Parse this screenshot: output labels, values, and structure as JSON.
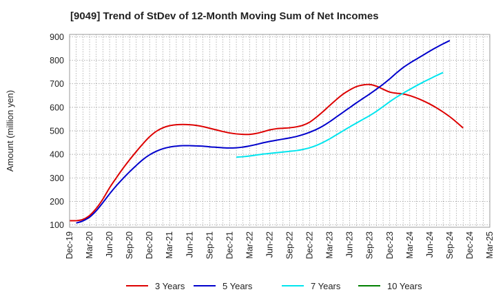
{
  "chart_data": {
    "type": "line",
    "title": "[9049]  Trend of StDev of 12-Month Moving Sum of Net Incomes",
    "ylabel": "Amount (million yen)",
    "xlabel": "",
    "ylim": [
      90,
      910
    ],
    "yticks": [
      100,
      200,
      300,
      400,
      500,
      600,
      700,
      800,
      900
    ],
    "x_tick_labels": [
      "Dec-19",
      "Mar-20",
      "Jun-20",
      "Sep-20",
      "Dec-20",
      "Mar-21",
      "Jun-21",
      "Sep-21",
      "Dec-21",
      "Mar-22",
      "Jun-22",
      "Sep-22",
      "Dec-22",
      "Mar-23",
      "Jun-23",
      "Sep-23",
      "Dec-23",
      "Mar-24",
      "Jun-24",
      "Sep-24",
      "Dec-24",
      "Mar-25"
    ],
    "grid": true,
    "legend_position": "bottom",
    "series": [
      {
        "name": "3 Years",
        "color": "#dd0000",
        "points": [
          [
            "Dec-19",
            118
          ],
          [
            "Jan-20",
            118
          ],
          [
            "Feb-20",
            123
          ],
          [
            "Mar-20",
            140
          ],
          [
            "Apr-20",
            170
          ],
          [
            "May-20",
            210
          ],
          [
            "Jun-20",
            258
          ],
          [
            "Jul-20",
            300
          ],
          [
            "Aug-20",
            340
          ],
          [
            "Sep-20",
            377
          ],
          [
            "Oct-20",
            412
          ],
          [
            "Nov-20",
            445
          ],
          [
            "Dec-20",
            475
          ],
          [
            "Jan-21",
            498
          ],
          [
            "Feb-21",
            513
          ],
          [
            "Mar-21",
            522
          ],
          [
            "Apr-21",
            526
          ],
          [
            "May-21",
            527
          ],
          [
            "Jun-21",
            526
          ],
          [
            "Jul-21",
            523
          ],
          [
            "Aug-21",
            518
          ],
          [
            "Sep-21",
            511
          ],
          [
            "Oct-21",
            504
          ],
          [
            "Nov-21",
            497
          ],
          [
            "Dec-21",
            491
          ],
          [
            "Jan-22",
            487
          ],
          [
            "Feb-22",
            485
          ],
          [
            "Mar-22",
            485
          ],
          [
            "Apr-22",
            489
          ],
          [
            "May-22",
            496
          ],
          [
            "Jun-22",
            504
          ],
          [
            "Jul-22",
            509
          ],
          [
            "Aug-22",
            511
          ],
          [
            "Sep-22",
            513
          ],
          [
            "Oct-22",
            517
          ],
          [
            "Nov-22",
            524
          ],
          [
            "Dec-22",
            537
          ],
          [
            "Jan-23",
            558
          ],
          [
            "Feb-23",
            582
          ],
          [
            "Mar-23",
            608
          ],
          [
            "Apr-23",
            633
          ],
          [
            "May-23",
            656
          ],
          [
            "Jun-23",
            674
          ],
          [
            "Jul-23",
            688
          ],
          [
            "Aug-23",
            695
          ],
          [
            "Sep-23",
            697
          ],
          [
            "Oct-23",
            690
          ],
          [
            "Nov-23",
            677
          ],
          [
            "Dec-23",
            665
          ],
          [
            "Jan-24",
            660
          ],
          [
            "Feb-24",
            657
          ],
          [
            "Mar-24",
            650
          ],
          [
            "Apr-24",
            640
          ],
          [
            "May-24",
            628
          ],
          [
            "Jun-24",
            614
          ],
          [
            "Jul-24",
            598
          ],
          [
            "Aug-24",
            580
          ],
          [
            "Sep-24",
            560
          ],
          [
            "Oct-24",
            537
          ],
          [
            "Nov-24",
            512
          ]
        ]
      },
      {
        "name": "5 Years",
        "color": "#0000cc",
        "points": [
          [
            "Jan-20",
            108
          ],
          [
            "Feb-20",
            117
          ],
          [
            "Mar-20",
            133
          ],
          [
            "Apr-20",
            160
          ],
          [
            "May-20",
            195
          ],
          [
            "Jun-20",
            232
          ],
          [
            "Jul-20",
            266
          ],
          [
            "Aug-20",
            297
          ],
          [
            "Sep-20",
            326
          ],
          [
            "Oct-20",
            353
          ],
          [
            "Nov-20",
            378
          ],
          [
            "Dec-20",
            398
          ],
          [
            "Jan-21",
            413
          ],
          [
            "Feb-21",
            424
          ],
          [
            "Mar-21",
            431
          ],
          [
            "Apr-21",
            435
          ],
          [
            "May-21",
            437
          ],
          [
            "Jun-21",
            437
          ],
          [
            "Jul-21",
            436
          ],
          [
            "Aug-21",
            435
          ],
          [
            "Sep-21",
            432
          ],
          [
            "Oct-21",
            430
          ],
          [
            "Nov-21",
            428
          ],
          [
            "Dec-21",
            427
          ],
          [
            "Jan-22",
            428
          ],
          [
            "Feb-22",
            431
          ],
          [
            "Mar-22",
            436
          ],
          [
            "Apr-22",
            442
          ],
          [
            "May-22",
            449
          ],
          [
            "Jun-22",
            455
          ],
          [
            "Jul-22",
            460
          ],
          [
            "Aug-22",
            465
          ],
          [
            "Sep-22",
            470
          ],
          [
            "Oct-22",
            476
          ],
          [
            "Nov-22",
            484
          ],
          [
            "Dec-22",
            494
          ],
          [
            "Jan-23",
            506
          ],
          [
            "Feb-23",
            521
          ],
          [
            "Mar-23",
            539
          ],
          [
            "Apr-23",
            559
          ],
          [
            "May-23",
            579
          ],
          [
            "Jun-23",
            599
          ],
          [
            "Jul-23",
            619
          ],
          [
            "Aug-23",
            638
          ],
          [
            "Sep-23",
            657
          ],
          [
            "Oct-23",
            677
          ],
          [
            "Nov-23",
            698
          ],
          [
            "Dec-23",
            721
          ],
          [
            "Jan-24",
            746
          ],
          [
            "Feb-24",
            769
          ],
          [
            "Mar-24",
            788
          ],
          [
            "Apr-24",
            805
          ],
          [
            "May-24",
            822
          ],
          [
            "Jun-24",
            839
          ],
          [
            "Jul-24",
            855
          ],
          [
            "Aug-24",
            870
          ],
          [
            "Sep-24",
            884
          ]
        ]
      },
      {
        "name": "7 Years",
        "color": "#00e5ee",
        "points": [
          [
            "Jan-22",
            388
          ],
          [
            "Feb-22",
            390
          ],
          [
            "Mar-22",
            393
          ],
          [
            "Apr-22",
            397
          ],
          [
            "May-22",
            401
          ],
          [
            "Jun-22",
            404
          ],
          [
            "Jul-22",
            407
          ],
          [
            "Aug-22",
            410
          ],
          [
            "Sep-22",
            413
          ],
          [
            "Oct-22",
            416
          ],
          [
            "Nov-22",
            421
          ],
          [
            "Dec-22",
            428
          ],
          [
            "Jan-23",
            438
          ],
          [
            "Feb-23",
            451
          ],
          [
            "Mar-23",
            466
          ],
          [
            "Apr-23",
            483
          ],
          [
            "May-23",
            500
          ],
          [
            "Jun-23",
            517
          ],
          [
            "Jul-23",
            533
          ],
          [
            "Aug-23",
            549
          ],
          [
            "Sep-23",
            565
          ],
          [
            "Oct-23",
            583
          ],
          [
            "Nov-23",
            603
          ],
          [
            "Dec-23",
            624
          ],
          [
            "Jan-24",
            643
          ],
          [
            "Feb-24",
            660
          ],
          [
            "Mar-24",
            676
          ],
          [
            "Apr-24",
            692
          ],
          [
            "May-24",
            707
          ],
          [
            "Jun-24",
            721
          ],
          [
            "Jul-24",
            735
          ],
          [
            "Aug-24",
            748
          ]
        ]
      },
      {
        "name": "10 Years",
        "color": "#008000",
        "points": []
      }
    ]
  }
}
